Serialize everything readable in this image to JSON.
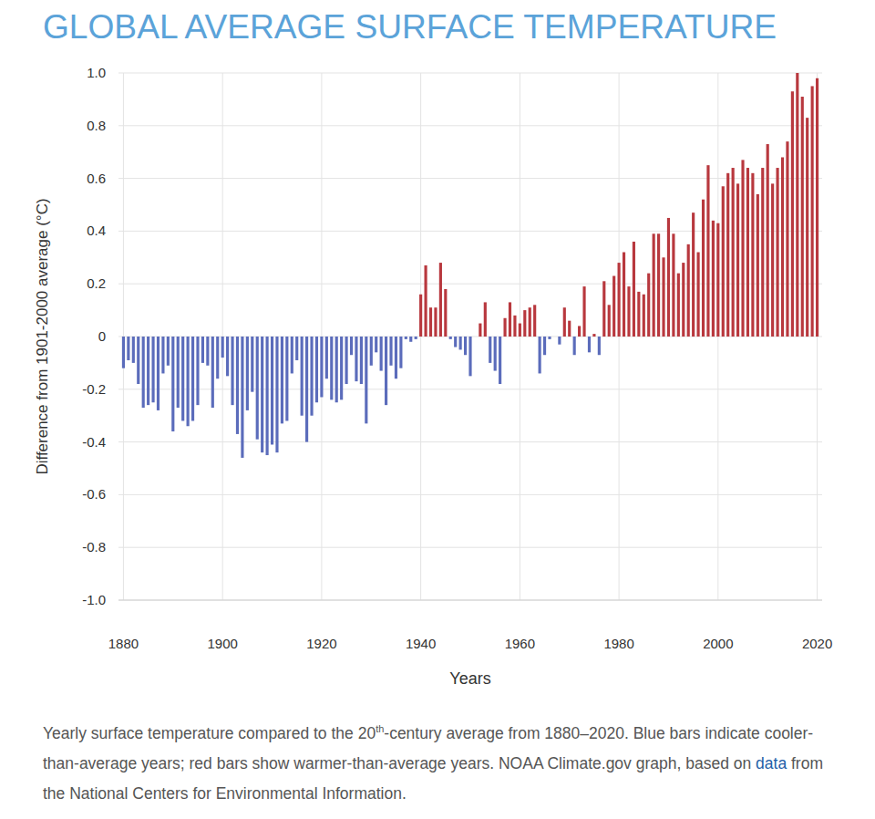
{
  "chart_data": {
    "type": "bar",
    "title": "GLOBAL AVERAGE SURFACE TEMPERATURE",
    "y_label": "Difference from 1901-2000 average (°C)",
    "x_label": "Years",
    "caption": {
      "before": "Yearly surface temperature compared to the 20",
      "sup": "th",
      "middle": "-century average from 1880–2020. Blue bars indicate cooler-than-average years; red bars show warmer-than-average years. NOAA Climate.gov graph, based on ",
      "link": "data",
      "after": " from the National Centers for Environmental Information."
    },
    "x": [
      1880,
      1881,
      1882,
      1883,
      1884,
      1885,
      1886,
      1887,
      1888,
      1889,
      1890,
      1891,
      1892,
      1893,
      1894,
      1895,
      1896,
      1897,
      1898,
      1899,
      1900,
      1901,
      1902,
      1903,
      1904,
      1905,
      1906,
      1907,
      1908,
      1909,
      1910,
      1911,
      1912,
      1913,
      1914,
      1915,
      1916,
      1917,
      1918,
      1919,
      1920,
      1921,
      1922,
      1923,
      1924,
      1925,
      1926,
      1927,
      1928,
      1929,
      1930,
      1931,
      1932,
      1933,
      1934,
      1935,
      1936,
      1937,
      1938,
      1939,
      1940,
      1941,
      1942,
      1943,
      1944,
      1945,
      1946,
      1947,
      1948,
      1949,
      1950,
      1951,
      1952,
      1953,
      1954,
      1955,
      1956,
      1957,
      1958,
      1959,
      1960,
      1961,
      1962,
      1963,
      1964,
      1965,
      1966,
      1967,
      1968,
      1969,
      1970,
      1971,
      1972,
      1973,
      1974,
      1975,
      1976,
      1977,
      1978,
      1979,
      1980,
      1981,
      1982,
      1983,
      1984,
      1985,
      1986,
      1987,
      1988,
      1989,
      1990,
      1991,
      1992,
      1993,
      1994,
      1995,
      1996,
      1997,
      1998,
      1999,
      2000,
      2001,
      2002,
      2003,
      2004,
      2005,
      2006,
      2007,
      2008,
      2009,
      2010,
      2011,
      2012,
      2013,
      2014,
      2015,
      2016,
      2017,
      2018,
      2019,
      2020
    ],
    "values": [
      -0.12,
      -0.09,
      -0.1,
      -0.18,
      -0.27,
      -0.26,
      -0.25,
      -0.28,
      -0.14,
      -0.11,
      -0.36,
      -0.27,
      -0.32,
      -0.34,
      -0.32,
      -0.26,
      -0.1,
      -0.11,
      -0.27,
      -0.16,
      -0.08,
      -0.15,
      -0.26,
      -0.37,
      -0.46,
      -0.28,
      -0.21,
      -0.39,
      -0.44,
      -0.45,
      -0.41,
      -0.44,
      -0.33,
      -0.32,
      -0.14,
      -0.09,
      -0.3,
      -0.4,
      -0.3,
      -0.25,
      -0.23,
      -0.16,
      -0.24,
      -0.25,
      -0.24,
      -0.18,
      -0.07,
      -0.17,
      -0.18,
      -0.33,
      -0.11,
      -0.06,
      -0.13,
      -0.26,
      -0.11,
      -0.16,
      -0.12,
      -0.01,
      -0.02,
      -0.01,
      0.16,
      0.27,
      0.11,
      0.11,
      0.28,
      0.18,
      -0.01,
      -0.04,
      -0.05,
      -0.07,
      -0.15,
      0.0,
      0.05,
      0.13,
      -0.1,
      -0.13,
      -0.18,
      0.07,
      0.13,
      0.08,
      0.05,
      0.1,
      0.11,
      0.12,
      -0.14,
      -0.07,
      -0.01,
      0.0,
      -0.03,
      0.11,
      0.06,
      -0.07,
      0.04,
      0.19,
      -0.06,
      0.01,
      -0.07,
      0.21,
      0.12,
      0.23,
      0.28,
      0.32,
      0.19,
      0.36,
      0.17,
      0.16,
      0.24,
      0.39,
      0.39,
      0.3,
      0.45,
      0.39,
      0.24,
      0.28,
      0.35,
      0.47,
      0.32,
      0.52,
      0.65,
      0.44,
      0.43,
      0.57,
      0.62,
      0.64,
      0.58,
      0.67,
      0.64,
      0.62,
      0.54,
      0.64,
      0.73,
      0.58,
      0.64,
      0.68,
      0.74,
      0.93,
      1.0,
      0.91,
      0.83,
      0.95,
      0.98
    ],
    "colors": [
      "#5b6cbb",
      "#5b6cbb",
      "#5b6cbb",
      "#5b6cbb",
      "#5b6cbb",
      "#5b6cbb",
      "#5b6cbb",
      "#5b6cbb",
      "#5b6cbb",
      "#5b6cbb",
      "#5b6cbb",
      "#5b6cbb",
      "#5b6cbb",
      "#5b6cbb",
      "#5b6cbb",
      "#5b6cbb",
      "#5b6cbb",
      "#5b6cbb",
      "#5b6cbb",
      "#5b6cbb",
      "#5b6cbb",
      "#5b6cbb",
      "#5b6cbb",
      "#5b6cbb",
      "#5b6cbb",
      "#5b6cbb",
      "#5b6cbb",
      "#5b6cbb",
      "#5b6cbb",
      "#5b6cbb",
      "#5b6cbb",
      "#5b6cbb",
      "#5b6cbb",
      "#5b6cbb",
      "#5b6cbb",
      "#5b6cbb",
      "#5b6cbb",
      "#5b6cbb",
      "#5b6cbb",
      "#5b6cbb",
      "#5b6cbb",
      "#5b6cbb",
      "#5b6cbb",
      "#5b6cbb",
      "#5b6cbb",
      "#5b6cbb",
      "#5b6cbb",
      "#5b6cbb",
      "#5b6cbb",
      "#5b6cbb",
      "#5b6cbb",
      "#5b6cbb",
      "#5b6cbb",
      "#5b6cbb",
      "#5b6cbb",
      "#5b6cbb",
      "#5b6cbb",
      "#5b6cbb",
      "#5b6cbb",
      "#5b6cbb",
      "#b8383e",
      "#b8383e",
      "#b8383e",
      "#b8383e",
      "#b8383e",
      "#b8383e",
      "#5b6cbb",
      "#5b6cbb",
      "#5b6cbb",
      "#5b6cbb",
      "#5b6cbb",
      "#5b6cbb",
      "#b8383e",
      "#b8383e",
      "#5b6cbb",
      "#5b6cbb",
      "#5b6cbb",
      "#b8383e",
      "#b8383e",
      "#b8383e",
      "#b8383e",
      "#b8383e",
      "#b8383e",
      "#b8383e",
      "#5b6cbb",
      "#5b6cbb",
      "#5b6cbb",
      "#5b6cbb",
      "#5b6cbb",
      "#b8383e",
      "#b8383e",
      "#5b6cbb",
      "#b8383e",
      "#b8383e",
      "#5b6cbb",
      "#b8383e",
      "#5b6cbb",
      "#b8383e",
      "#b8383e",
      "#b8383e",
      "#b8383e",
      "#b8383e",
      "#b8383e",
      "#b8383e",
      "#b8383e",
      "#b8383e",
      "#b8383e",
      "#b8383e",
      "#b8383e",
      "#b8383e",
      "#b8383e",
      "#b8383e",
      "#b8383e",
      "#b8383e",
      "#b8383e",
      "#b8383e",
      "#b8383e",
      "#b8383e",
      "#b8383e",
      "#b8383e",
      "#b8383e",
      "#b8383e",
      "#b8383e",
      "#b8383e",
      "#b8383e",
      "#b8383e",
      "#b8383e",
      "#b8383e",
      "#b8383e",
      "#b8383e",
      "#b8383e",
      "#b8383e",
      "#b8383e",
      "#b8383e",
      "#b8383e",
      "#b8383e",
      "#b8383e",
      "#b8383e",
      "#b8383e",
      "#b8383e",
      "#b8383e"
    ],
    "xlim": [
      1879,
      2021
    ],
    "ylim": [
      -1,
      1
    ],
    "xticks": [
      1880,
      1900,
      1920,
      1940,
      1960,
      1980,
      2000,
      2020
    ],
    "yticks": [
      {
        "value": -1,
        "label": "-1.0"
      },
      -0.8,
      -0.6,
      -0.4,
      -0.2,
      0,
      0.2,
      0.4,
      0.6,
      0.8,
      {
        "value": 1,
        "label": "1.0"
      }
    ],
    "grid": true
  }
}
